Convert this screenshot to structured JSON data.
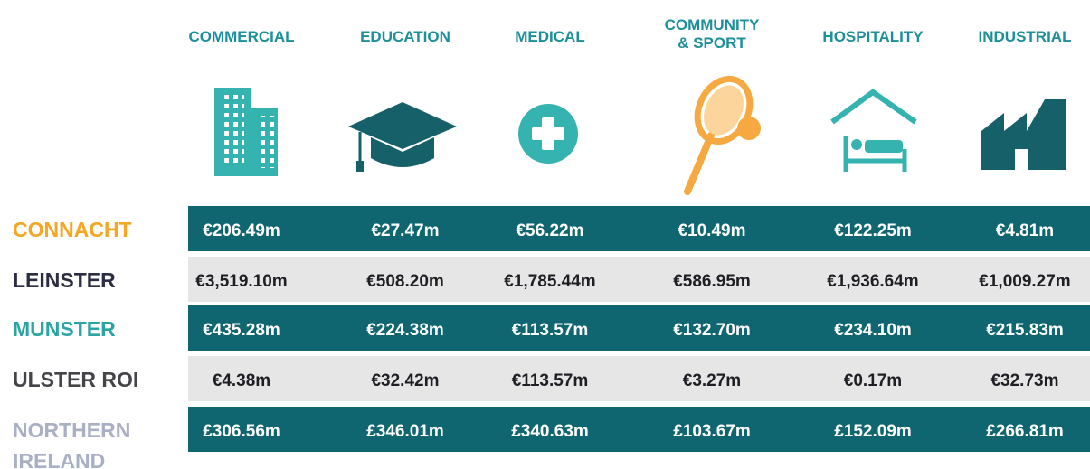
{
  "header": {
    "columns": [
      "COMMERCIAL",
      "EDUCATION",
      "MEDICAL",
      "COMMUNITY\n& SPORT",
      "HOSPITALITY",
      "INDUSTRIAL"
    ]
  },
  "table": {
    "rows": [
      {
        "region": "CONNACHT",
        "cells": [
          "€206.49m",
          "€27.47m",
          "€56.22m",
          "€10.49m",
          "€122.25m",
          "€4.81m"
        ]
      },
      {
        "region": "LEINSTER",
        "cells": [
          "€3,519.10m",
          "€508.20m",
          "€1,785.44m",
          "€586.95m",
          "€1,936.64m",
          "€1,009.27m"
        ]
      },
      {
        "region": "MUNSTER",
        "cells": [
          "€435.28m",
          "€224.38m",
          "€113.57m",
          "€132.70m",
          "€234.10m",
          "€215.83m"
        ]
      },
      {
        "region": "ULSTER ROI",
        "cells": [
          "€4.38m",
          "€32.42m",
          "€113.57m",
          "€3.27m",
          "€0.17m",
          "€32.73m"
        ]
      },
      {
        "region": "NORTHERN\nIRELAND",
        "cells": [
          "£306.56m",
          "£346.01m",
          "£340.63m",
          "£103.67m",
          "£152.09m",
          "£266.81m"
        ]
      }
    ]
  }
}
